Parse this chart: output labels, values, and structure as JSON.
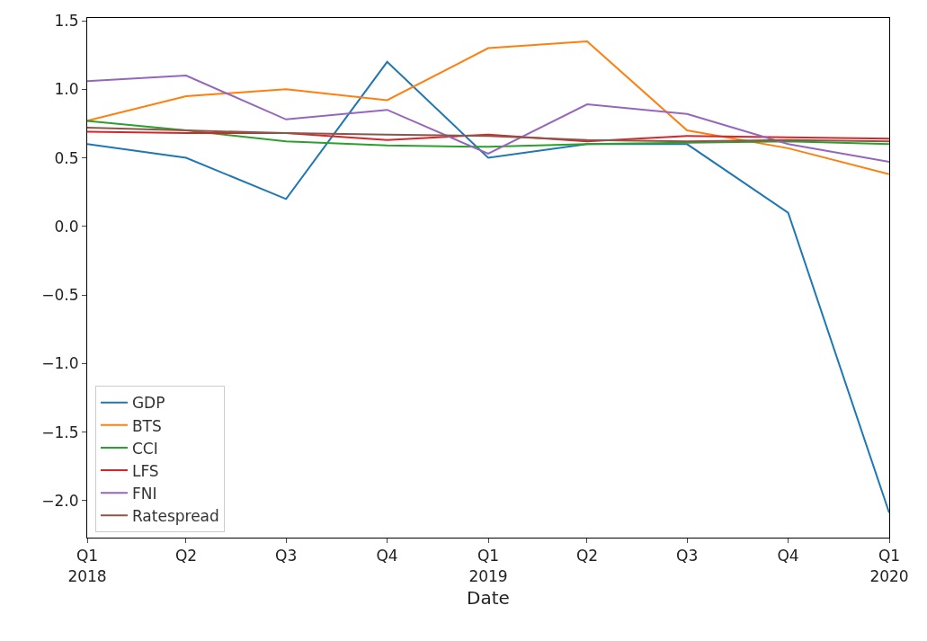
{
  "chart_data": {
    "type": "line",
    "xlabel": "Date",
    "x": [
      "2018-01",
      "2018-04",
      "2018-07",
      "2018-10",
      "2019-01",
      "2019-04",
      "2019-07",
      "2019-10",
      "2020-01"
    ],
    "series": [
      {
        "name": "GDP",
        "color": "#1f77b4",
        "values": [
          0.6,
          0.5,
          0.2,
          1.2,
          0.5,
          0.6,
          0.6,
          0.1,
          -2.09
        ]
      },
      {
        "name": "BTS",
        "color": "#ff7f0e",
        "values": [
          0.77,
          0.95,
          1.0,
          0.92,
          1.3,
          1.35,
          0.7,
          0.57,
          0.38
        ]
      },
      {
        "name": "CCI",
        "color": "#2ca02c",
        "values": [
          0.77,
          0.7,
          0.62,
          0.59,
          0.58,
          0.6,
          0.61,
          0.62,
          0.6
        ]
      },
      {
        "name": "LFS",
        "color": "#d62728",
        "values": [
          0.69,
          0.68,
          0.68,
          0.63,
          0.67,
          0.62,
          0.66,
          0.65,
          0.64
        ]
      },
      {
        "name": "FNI",
        "color": "#9467bd",
        "values": [
          1.06,
          1.1,
          0.78,
          0.85,
          0.53,
          0.89,
          0.82,
          0.6,
          0.47
        ]
      },
      {
        "name": "Ratespread",
        "color": "#8c564b",
        "values": [
          0.72,
          0.7,
          0.68,
          0.67,
          0.66,
          0.63,
          0.62,
          0.63,
          0.62
        ]
      }
    ],
    "xlim": [
      "2018-01",
      "2020-01"
    ],
    "xticks": [
      {
        "value": "2018-01",
        "label": "Q1\n2018"
      },
      {
        "value": "2018-04",
        "label": "Q2"
      },
      {
        "value": "2018-07",
        "label": "Q3"
      },
      {
        "value": "2018-10",
        "label": "Q4"
      },
      {
        "value": "2019-01",
        "label": "Q1\n2019"
      },
      {
        "value": "2019-04",
        "label": "Q2"
      },
      {
        "value": "2019-07",
        "label": "Q3"
      },
      {
        "value": "2019-10",
        "label": "Q4"
      },
      {
        "value": "2020-01",
        "label": "Q1\n2020"
      }
    ],
    "ylim": [
      -2.27,
      1.52
    ],
    "yticks": [
      {
        "value": -2.0,
        "label": "−2.0"
      },
      {
        "value": -1.5,
        "label": "−1.5"
      },
      {
        "value": -1.0,
        "label": "−1.0"
      },
      {
        "value": -0.5,
        "label": "−0.5"
      },
      {
        "value": 0.0,
        "label": "0.0"
      },
      {
        "value": 0.5,
        "label": "0.5"
      },
      {
        "value": 1.0,
        "label": "1.0"
      },
      {
        "value": 1.5,
        "label": "1.5"
      }
    ],
    "legend": "bottom left",
    "marker": "none",
    "line_style": "solid"
  }
}
